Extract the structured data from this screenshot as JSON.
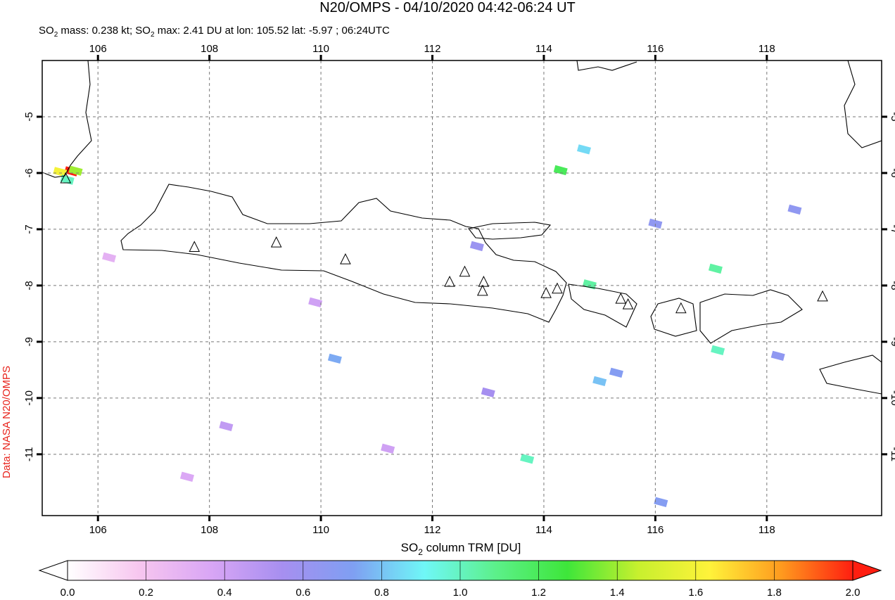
{
  "chart_data": {
    "type": "map",
    "title": "N20/OMPS - 04/10/2020 04:42-06:24 UT",
    "subtitle": [
      "SO",
      "2",
      " mass: 0.238 kt; SO",
      "2",
      " max: 2.41 DU at lon: 105.52 lat: -5.97 ; 06:24UTC"
    ],
    "credit": "Data: NASA N20/OMPS",
    "colorbar_label": [
      "SO",
      "2",
      " column TRM [DU]"
    ],
    "xlim": [
      105,
      120.06
    ],
    "ylim": [
      -4,
      -12.09
    ],
    "xticks": [
      106,
      108,
      110,
      112,
      114,
      116,
      118
    ],
    "yticks": [
      -5,
      -6,
      -7,
      -8,
      -9,
      -10,
      -11
    ],
    "grid": true,
    "colormap": [
      "#ffffff",
      "#f7c6ef",
      "#d9a6f5",
      "#a78ff0",
      "#7f9ff2",
      "#6ff7f7",
      "#5cf08a",
      "#3ee63a",
      "#c8f02e",
      "#fff23a",
      "#ff9a1e",
      "#ff1e10"
    ],
    "clim": [
      0,
      2
    ],
    "cticks": [
      {
        "value": 0,
        "label": "0.0"
      },
      0.2,
      0.4,
      0.6,
      0.8,
      {
        "value": 1,
        "label": "1.0"
      },
      1.2,
      1.4,
      1.6,
      1.8,
      {
        "value": 2,
        "label": "2.0"
      }
    ],
    "pixels": {
      "lon": [
        105.52,
        105.32,
        105.6,
        105.45,
        114.3,
        114.72,
        117.08,
        114.82,
        117.12,
        113.7,
        115.0,
        110.25,
        116.1,
        118.2,
        115.3,
        116.0,
        118.5,
        112.8,
        109.9,
        108.3,
        107.6,
        111.2,
        113.0,
        106.2
      ],
      "lat": [
        -5.97,
        -5.98,
        -5.96,
        -6.12,
        -5.95,
        -5.58,
        -7.7,
        -7.98,
        -9.15,
        -11.08,
        -9.7,
        -9.3,
        -11.85,
        -9.25,
        -9.55,
        -6.9,
        -6.65,
        -7.3,
        -8.3,
        -10.5,
        -11.4,
        -10.9,
        -9.9,
        -7.5
      ],
      "values": [
        2.41,
        1.6,
        1.4,
        1.0,
        1.2,
        0.85,
        1.05,
        1.05,
        1.0,
        1.0,
        0.8,
        0.75,
        0.7,
        0.65,
        0.7,
        0.65,
        0.65,
        0.6,
        0.4,
        0.45,
        0.35,
        0.4,
        0.55,
        0.3
      ]
    },
    "volcanoes": {
      "lon": [
        105.42,
        107.73,
        109.2,
        110.44,
        112.31,
        112.58,
        112.92,
        112.9,
        114.04,
        114.24,
        115.38,
        115.51,
        116.46,
        119.0
      ],
      "lat": [
        -6.1,
        -7.32,
        -7.24,
        -7.54,
        -7.94,
        -7.76,
        -7.94,
        -8.1,
        -8.14,
        -8.06,
        -8.24,
        -8.34,
        -8.41,
        -8.2
      ]
    }
  }
}
